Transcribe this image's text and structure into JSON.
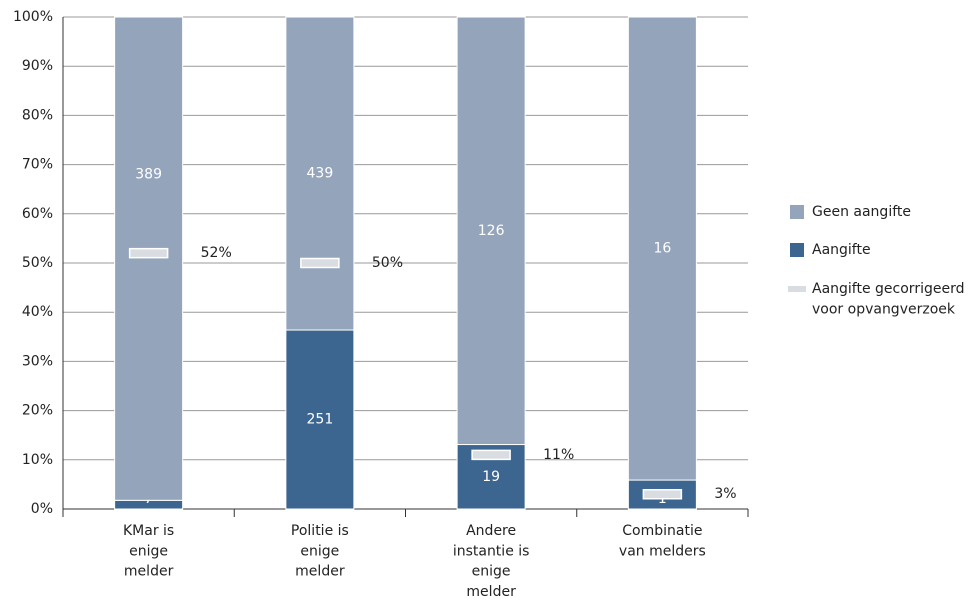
{
  "chart_data": {
    "type": "bar",
    "stacking": "percent",
    "categories": [
      "KMar is\nenige\nmelder",
      "Politie is\nenige\nmelder",
      "Andere\ninstantie is\nenige\nmelder",
      "Combinatie\nvan melders"
    ],
    "series": [
      {
        "name": "Aangifte",
        "color": "#3c6690",
        "values": [
          7,
          251,
          19,
          1
        ]
      },
      {
        "name": "Geen aangifte",
        "color": "#93a4bb",
        "values": [
          389,
          439,
          126,
          16
        ]
      }
    ],
    "markers": {
      "name": "Aangifte gecorrigeerd\nvoor opvangverzoek",
      "color": "#d9dde2",
      "values": [
        52,
        50,
        11,
        3
      ],
      "value_labels": [
        "52%",
        "50%",
        "11%",
        "3%"
      ]
    },
    "ylim": [
      0,
      100
    ],
    "yticks": [
      {
        "value": 0,
        "label": "0%"
      },
      {
        "value": 10,
        "label": "10%"
      },
      {
        "value": 20,
        "label": "20%"
      },
      {
        "value": 30,
        "label": "30%"
      },
      {
        "value": 40,
        "label": "40%"
      },
      {
        "value": 50,
        "label": "50%"
      },
      {
        "value": 60,
        "label": "60%"
      },
      {
        "value": 70,
        "label": "70%"
      },
      {
        "value": 80,
        "label": "80%"
      },
      {
        "value": 90,
        "label": "90%"
      },
      {
        "value": 100,
        "label": "100%"
      }
    ],
    "grid": true,
    "legend": "right"
  }
}
